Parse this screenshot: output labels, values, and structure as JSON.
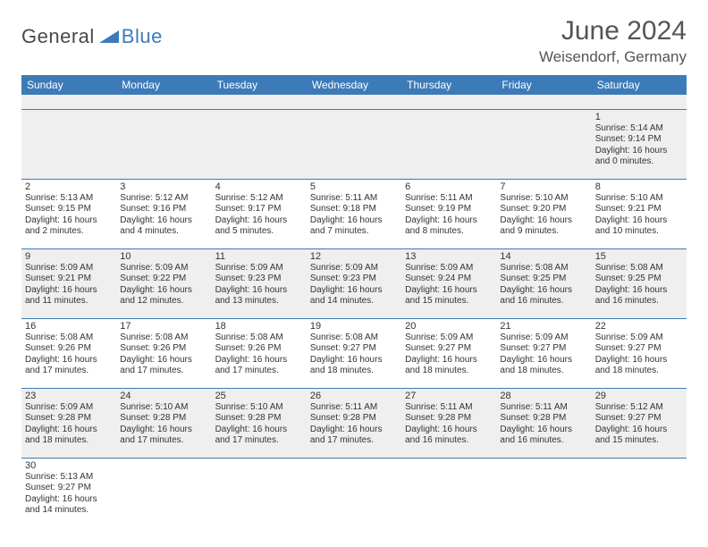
{
  "logo": {
    "part1": "General",
    "part2": "Blue"
  },
  "header": {
    "title": "June 2024",
    "location": "Weisendorf, Germany"
  },
  "colors": {
    "accent": "#3d7bb8",
    "text": "#333333",
    "header_text": "#555555",
    "stripe": "#efefef",
    "bg": "#ffffff"
  },
  "dayHeaders": [
    "Sunday",
    "Monday",
    "Tuesday",
    "Wednesday",
    "Thursday",
    "Friday",
    "Saturday"
  ],
  "weeks": [
    [
      null,
      null,
      null,
      null,
      null,
      null,
      {
        "n": "1",
        "sr": "Sunrise: 5:14 AM",
        "ss": "Sunset: 9:14 PM",
        "d1": "Daylight: 16 hours",
        "d2": "and 0 minutes."
      }
    ],
    [
      {
        "n": "2",
        "sr": "Sunrise: 5:13 AM",
        "ss": "Sunset: 9:15 PM",
        "d1": "Daylight: 16 hours",
        "d2": "and 2 minutes."
      },
      {
        "n": "3",
        "sr": "Sunrise: 5:12 AM",
        "ss": "Sunset: 9:16 PM",
        "d1": "Daylight: 16 hours",
        "d2": "and 4 minutes."
      },
      {
        "n": "4",
        "sr": "Sunrise: 5:12 AM",
        "ss": "Sunset: 9:17 PM",
        "d1": "Daylight: 16 hours",
        "d2": "and 5 minutes."
      },
      {
        "n": "5",
        "sr": "Sunrise: 5:11 AM",
        "ss": "Sunset: 9:18 PM",
        "d1": "Daylight: 16 hours",
        "d2": "and 7 minutes."
      },
      {
        "n": "6",
        "sr": "Sunrise: 5:11 AM",
        "ss": "Sunset: 9:19 PM",
        "d1": "Daylight: 16 hours",
        "d2": "and 8 minutes."
      },
      {
        "n": "7",
        "sr": "Sunrise: 5:10 AM",
        "ss": "Sunset: 9:20 PM",
        "d1": "Daylight: 16 hours",
        "d2": "and 9 minutes."
      },
      {
        "n": "8",
        "sr": "Sunrise: 5:10 AM",
        "ss": "Sunset: 9:21 PM",
        "d1": "Daylight: 16 hours",
        "d2": "and 10 minutes."
      }
    ],
    [
      {
        "n": "9",
        "sr": "Sunrise: 5:09 AM",
        "ss": "Sunset: 9:21 PM",
        "d1": "Daylight: 16 hours",
        "d2": "and 11 minutes."
      },
      {
        "n": "10",
        "sr": "Sunrise: 5:09 AM",
        "ss": "Sunset: 9:22 PM",
        "d1": "Daylight: 16 hours",
        "d2": "and 12 minutes."
      },
      {
        "n": "11",
        "sr": "Sunrise: 5:09 AM",
        "ss": "Sunset: 9:23 PM",
        "d1": "Daylight: 16 hours",
        "d2": "and 13 minutes."
      },
      {
        "n": "12",
        "sr": "Sunrise: 5:09 AM",
        "ss": "Sunset: 9:23 PM",
        "d1": "Daylight: 16 hours",
        "d2": "and 14 minutes."
      },
      {
        "n": "13",
        "sr": "Sunrise: 5:09 AM",
        "ss": "Sunset: 9:24 PM",
        "d1": "Daylight: 16 hours",
        "d2": "and 15 minutes."
      },
      {
        "n": "14",
        "sr": "Sunrise: 5:08 AM",
        "ss": "Sunset: 9:25 PM",
        "d1": "Daylight: 16 hours",
        "d2": "and 16 minutes."
      },
      {
        "n": "15",
        "sr": "Sunrise: 5:08 AM",
        "ss": "Sunset: 9:25 PM",
        "d1": "Daylight: 16 hours",
        "d2": "and 16 minutes."
      }
    ],
    [
      {
        "n": "16",
        "sr": "Sunrise: 5:08 AM",
        "ss": "Sunset: 9:26 PM",
        "d1": "Daylight: 16 hours",
        "d2": "and 17 minutes."
      },
      {
        "n": "17",
        "sr": "Sunrise: 5:08 AM",
        "ss": "Sunset: 9:26 PM",
        "d1": "Daylight: 16 hours",
        "d2": "and 17 minutes."
      },
      {
        "n": "18",
        "sr": "Sunrise: 5:08 AM",
        "ss": "Sunset: 9:26 PM",
        "d1": "Daylight: 16 hours",
        "d2": "and 17 minutes."
      },
      {
        "n": "19",
        "sr": "Sunrise: 5:08 AM",
        "ss": "Sunset: 9:27 PM",
        "d1": "Daylight: 16 hours",
        "d2": "and 18 minutes."
      },
      {
        "n": "20",
        "sr": "Sunrise: 5:09 AM",
        "ss": "Sunset: 9:27 PM",
        "d1": "Daylight: 16 hours",
        "d2": "and 18 minutes."
      },
      {
        "n": "21",
        "sr": "Sunrise: 5:09 AM",
        "ss": "Sunset: 9:27 PM",
        "d1": "Daylight: 16 hours",
        "d2": "and 18 minutes."
      },
      {
        "n": "22",
        "sr": "Sunrise: 5:09 AM",
        "ss": "Sunset: 9:27 PM",
        "d1": "Daylight: 16 hours",
        "d2": "and 18 minutes."
      }
    ],
    [
      {
        "n": "23",
        "sr": "Sunrise: 5:09 AM",
        "ss": "Sunset: 9:28 PM",
        "d1": "Daylight: 16 hours",
        "d2": "and 18 minutes."
      },
      {
        "n": "24",
        "sr": "Sunrise: 5:10 AM",
        "ss": "Sunset: 9:28 PM",
        "d1": "Daylight: 16 hours",
        "d2": "and 17 minutes."
      },
      {
        "n": "25",
        "sr": "Sunrise: 5:10 AM",
        "ss": "Sunset: 9:28 PM",
        "d1": "Daylight: 16 hours",
        "d2": "and 17 minutes."
      },
      {
        "n": "26",
        "sr": "Sunrise: 5:11 AM",
        "ss": "Sunset: 9:28 PM",
        "d1": "Daylight: 16 hours",
        "d2": "and 17 minutes."
      },
      {
        "n": "27",
        "sr": "Sunrise: 5:11 AM",
        "ss": "Sunset: 9:28 PM",
        "d1": "Daylight: 16 hours",
        "d2": "and 16 minutes."
      },
      {
        "n": "28",
        "sr": "Sunrise: 5:11 AM",
        "ss": "Sunset: 9:28 PM",
        "d1": "Daylight: 16 hours",
        "d2": "and 16 minutes."
      },
      {
        "n": "29",
        "sr": "Sunrise: 5:12 AM",
        "ss": "Sunset: 9:27 PM",
        "d1": "Daylight: 16 hours",
        "d2": "and 15 minutes."
      }
    ],
    [
      {
        "n": "30",
        "sr": "Sunrise: 5:13 AM",
        "ss": "Sunset: 9:27 PM",
        "d1": "Daylight: 16 hours",
        "d2": "and 14 minutes."
      },
      null,
      null,
      null,
      null,
      null,
      null
    ]
  ]
}
